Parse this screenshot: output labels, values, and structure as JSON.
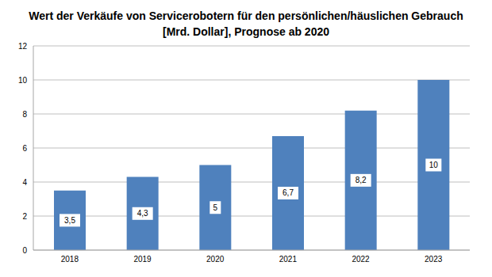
{
  "chart_data": {
    "type": "bar",
    "title": "Wert der Verkäufe von Servicerobotern für den persönlichen/häuslichen Gebrauch [Mrd. Dollar], Prognose ab 2020",
    "categories": [
      "2018",
      "2019",
      "2020",
      "2021",
      "2022",
      "2023"
    ],
    "values": [
      3.5,
      4.3,
      5,
      6.7,
      8.2,
      10
    ],
    "value_labels": [
      "3,5",
      "4,3",
      "5",
      "6,7",
      "8,2",
      "10"
    ],
    "color": "#4f81bd",
    "ylim": [
      0,
      12
    ],
    "yticks": [
      0,
      2,
      4,
      6,
      8,
      10,
      12
    ],
    "grid": true,
    "data_labels": true
  }
}
